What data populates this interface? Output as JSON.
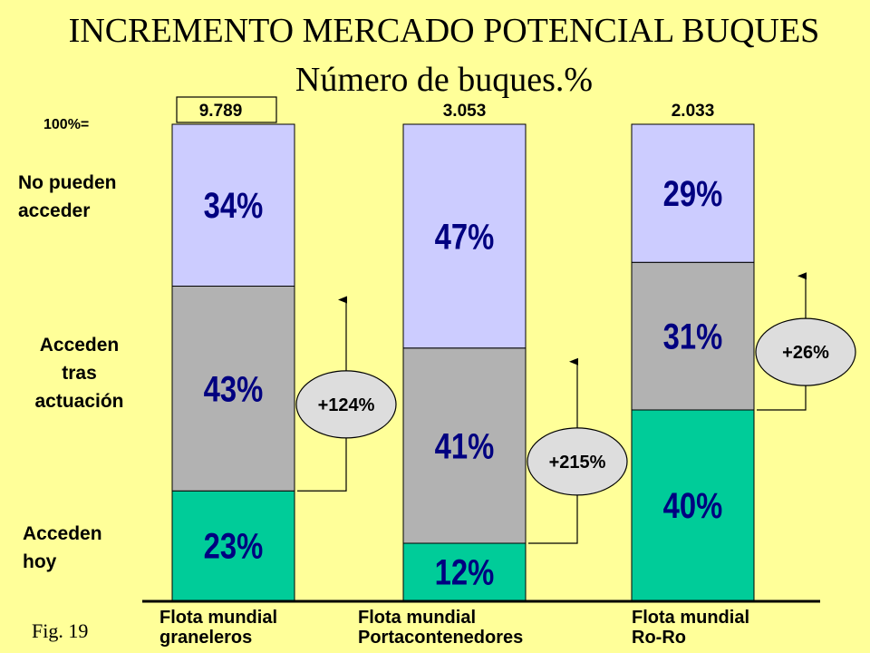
{
  "chart_data": {
    "type": "stacked_bar_100",
    "title": "INCREMENTO MERCADO POTENCIAL BUQUES",
    "subtitle": "Número de buques.%",
    "footnote": "Fig. 19",
    "categories": [
      [
        "Flota mundial",
        "graneleros"
      ],
      [
        "Flota mundial",
        "Portacontenedores"
      ],
      [
        "Flota mundial",
        "Ro-Ro"
      ]
    ],
    "series": [
      {
        "name": "Acceden hoy",
        "color": "#00cc99",
        "values": [
          23,
          12,
          40
        ],
        "value_labels": [
          "23%",
          "12%",
          "40%"
        ]
      },
      {
        "name": "Acceden tras actuación",
        "color": "#b2b2b2",
        "values": [
          43,
          41,
          31
        ],
        "value_labels": [
          "43%",
          "41%",
          "31%"
        ]
      },
      {
        "name": "No pueden acceder",
        "color": "#ccccff",
        "values": [
          34,
          47,
          29
        ],
        "value_labels": [
          "34%",
          "47%",
          "29%"
        ]
      }
    ],
    "ylim": [
      0,
      100
    ],
    "totals": {
      "label": "100%=",
      "values": [
        9789,
        3053,
        2033
      ],
      "value_labels": [
        "9.789",
        "3.053",
        "2.033"
      ]
    },
    "increments": {
      "values": [
        124,
        215,
        26
      ],
      "value_labels": [
        "+124%",
        "+215%",
        "+26%"
      ]
    }
  }
}
